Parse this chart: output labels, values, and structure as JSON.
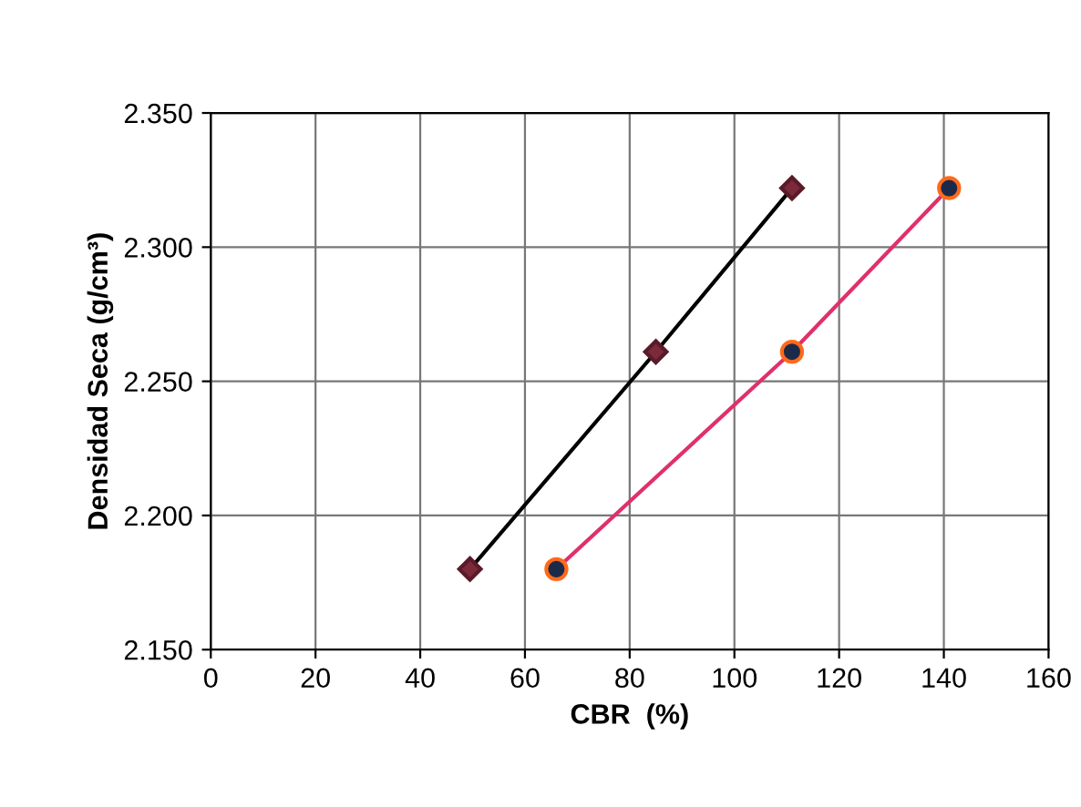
{
  "chart_data": {
    "type": "line",
    "xlabel": "CBR  (%)",
    "ylabel": "Densidad Seca (g/cm³)",
    "xlim": [
      0,
      160
    ],
    "xticks": [
      0,
      20,
      40,
      60,
      80,
      100,
      120,
      140,
      160
    ],
    "ylim": [
      2.15,
      2.35
    ],
    "yticks": [
      {
        "value": 2.15,
        "label": "2.150"
      },
      {
        "value": 2.2,
        "label": "2.200"
      },
      {
        "value": 2.25,
        "label": "2.250"
      },
      {
        "value": 2.3,
        "label": "2.300"
      },
      {
        "value": 2.35,
        "label": "2.350"
      }
    ],
    "grid": true,
    "line_style": "solid",
    "series": [
      {
        "color": "#000000",
        "marker": "diamond",
        "x": [
          49.5,
          85,
          111
        ],
        "values": [
          2.18,
          2.261,
          2.322
        ]
      },
      {
        "color": "#e0306a",
        "marker": "circle",
        "x": [
          66,
          111,
          141
        ],
        "values": [
          2.18,
          2.261,
          2.322
        ]
      }
    ]
  }
}
